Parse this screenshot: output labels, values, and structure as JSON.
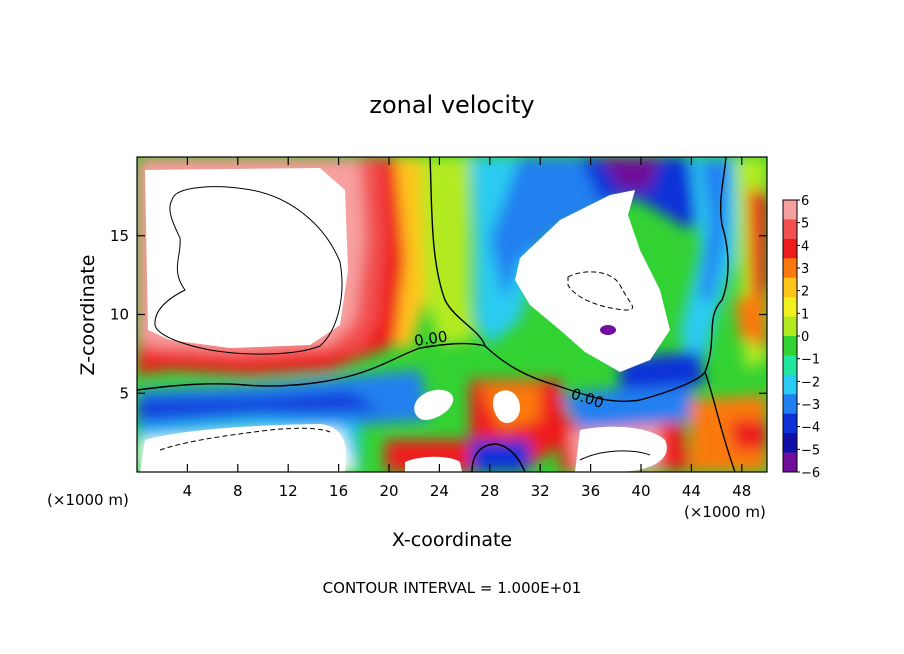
{
  "chart_data": {
    "type": "heatmap",
    "title": "zonal velocity",
    "xlabel": "X-coordinate",
    "ylabel": "Z-coordinate",
    "x_unit_left": "(×1000 m)",
    "x_unit_right": "(×1000 m)",
    "footer": "CONTOUR INTERVAL = 1.000E+01",
    "xlim": [
      0,
      50
    ],
    "ylim": [
      0,
      20
    ],
    "x_ticks": [
      4,
      8,
      12,
      16,
      20,
      24,
      28,
      32,
      36,
      40,
      44,
      48
    ],
    "y_ticks": [
      5,
      10,
      15
    ],
    "colorbar": {
      "ticks": [
        6,
        5,
        4,
        3,
        2,
        1,
        0,
        -1,
        -2,
        -3,
        -4,
        -5,
        -6
      ],
      "colors": [
        "#f7a0a0",
        "#f25050",
        "#ee1c1c",
        "#fb7a0f",
        "#ffc51a",
        "#f2f01e",
        "#b2ea20",
        "#33d233",
        "#22e6a0",
        "#2acbf2",
        "#2080f0",
        "#1030d8",
        "#1010a8",
        "#70109a"
      ]
    },
    "contour_labels": [
      "0.00",
      "0.00"
    ]
  }
}
